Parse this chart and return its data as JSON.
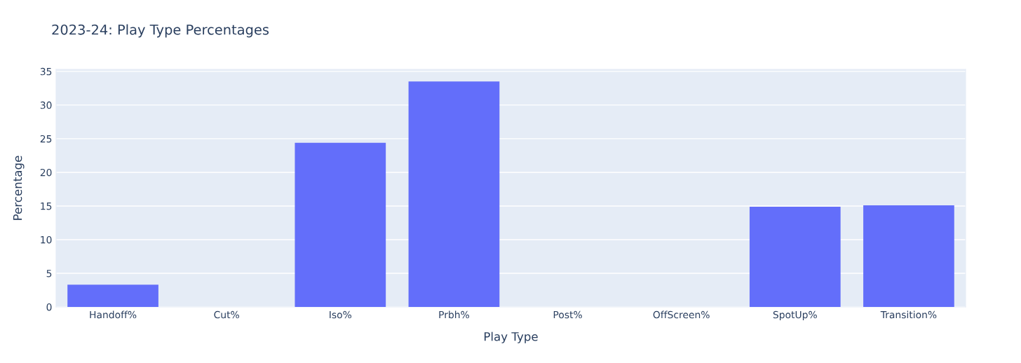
{
  "chart_data": {
    "type": "bar",
    "title": "2023-24: Play Type Percentages",
    "xlabel": "Play Type",
    "ylabel": "Percentage",
    "categories": [
      "Handoff%",
      "Cut%",
      "Iso%",
      "Prbh%",
      "Post%",
      "OffScreen%",
      "SpotUp%",
      "Transition%"
    ],
    "values": [
      3.3,
      0,
      24.4,
      33.5,
      0,
      0,
      14.9,
      15.1
    ],
    "color": "#636efa",
    "ylim": [
      0,
      35.3
    ],
    "yticks": [
      0,
      5,
      10,
      15,
      20,
      25,
      30,
      35
    ],
    "grid": "y"
  }
}
